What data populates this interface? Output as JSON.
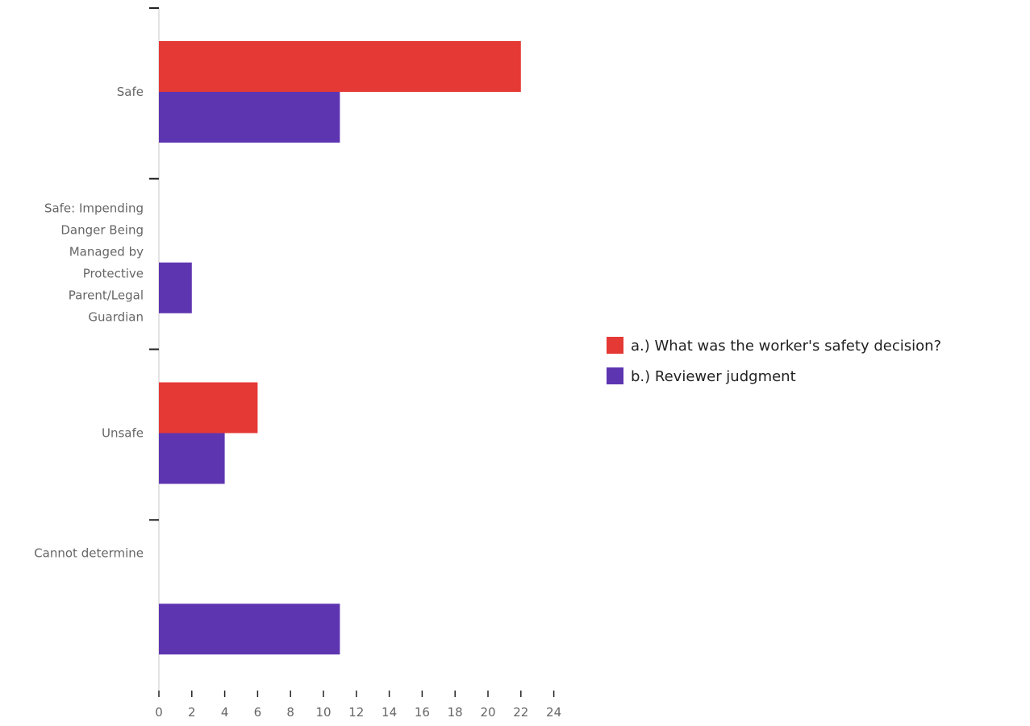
{
  "chart_data": {
    "type": "bar",
    "orientation": "horizontal",
    "categories": [
      "Safe",
      "Safe: Impending Danger Being Managed by Protective Parent/Legal Guardian",
      "Unsafe",
      "Cannot determine"
    ],
    "category_lines": [
      [
        "Safe"
      ],
      [
        "Safe: Impending",
        "Danger Being",
        "Managed by",
        "Protective",
        "Parent/Legal",
        "Guardian"
      ],
      [
        "Unsafe"
      ],
      [
        "Cannot determine"
      ]
    ],
    "series": [
      {
        "name": "a.) What was the worker's safety decision?",
        "color": "#e53935",
        "values": [
          22,
          0,
          6,
          0
        ]
      },
      {
        "name": "b.) Reviewer judgment",
        "color": "#5e35b1",
        "values": [
          11,
          2,
          4,
          11
        ]
      }
    ],
    "xlim": [
      0,
      24
    ],
    "xticks": [
      0,
      2,
      4,
      6,
      8,
      10,
      12,
      14,
      16,
      18,
      20,
      22,
      24
    ],
    "title": "",
    "xlabel": "",
    "ylabel": "",
    "grid": false,
    "legend_position": "right"
  }
}
